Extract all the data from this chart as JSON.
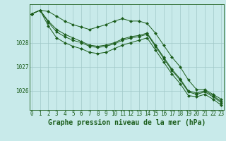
{
  "background_color": "#c8eaea",
  "grid_color": "#a0c8c8",
  "line_color": "#1a5c1a",
  "marker_color": "#1a5c1a",
  "xlabel": "Graphe pression niveau de la mer (hPa)",
  "xlabel_fontsize": 7.0,
  "tick_fontsize": 5.5,
  "ylabel_ticks": [
    1026,
    1027,
    1028
  ],
  "xlim": [
    -0.3,
    23.3
  ],
  "ylim": [
    1025.2,
    1029.6
  ],
  "series": [
    [
      1029.2,
      1029.35,
      1029.3,
      1029.1,
      1028.9,
      1028.75,
      1028.65,
      1028.55,
      1028.65,
      1028.75,
      1028.9,
      1029.0,
      1028.9,
      1028.9,
      1028.8,
      1028.4,
      1027.9,
      1027.4,
      1027.0,
      1026.45,
      1026.05,
      1026.05,
      1025.85,
      1025.65
    ],
    [
      1029.2,
      1029.35,
      1028.85,
      1028.45,
      1028.25,
      1028.1,
      1028.0,
      1027.85,
      1027.8,
      1027.85,
      1027.95,
      1028.1,
      1028.2,
      1028.25,
      1028.35,
      1027.85,
      1027.35,
      1026.85,
      1026.45,
      1025.95,
      1025.85,
      1025.95,
      1025.75,
      1025.5
    ],
    [
      1029.2,
      1029.35,
      1028.7,
      1028.2,
      1028.0,
      1027.85,
      1027.75,
      1027.6,
      1027.55,
      1027.6,
      1027.75,
      1027.9,
      1028.0,
      1028.1,
      1028.2,
      1027.7,
      1027.2,
      1026.7,
      1026.3,
      1025.8,
      1025.75,
      1025.85,
      1025.65,
      1025.4
    ],
    [
      1029.2,
      1029.35,
      1028.9,
      1028.55,
      1028.35,
      1028.2,
      1028.05,
      1027.9,
      1027.85,
      1027.9,
      1028.0,
      1028.15,
      1028.25,
      1028.3,
      1028.4,
      1027.9,
      1027.4,
      1026.9,
      1026.5,
      1026.0,
      1025.9,
      1026.0,
      1025.8,
      1025.55
    ]
  ]
}
